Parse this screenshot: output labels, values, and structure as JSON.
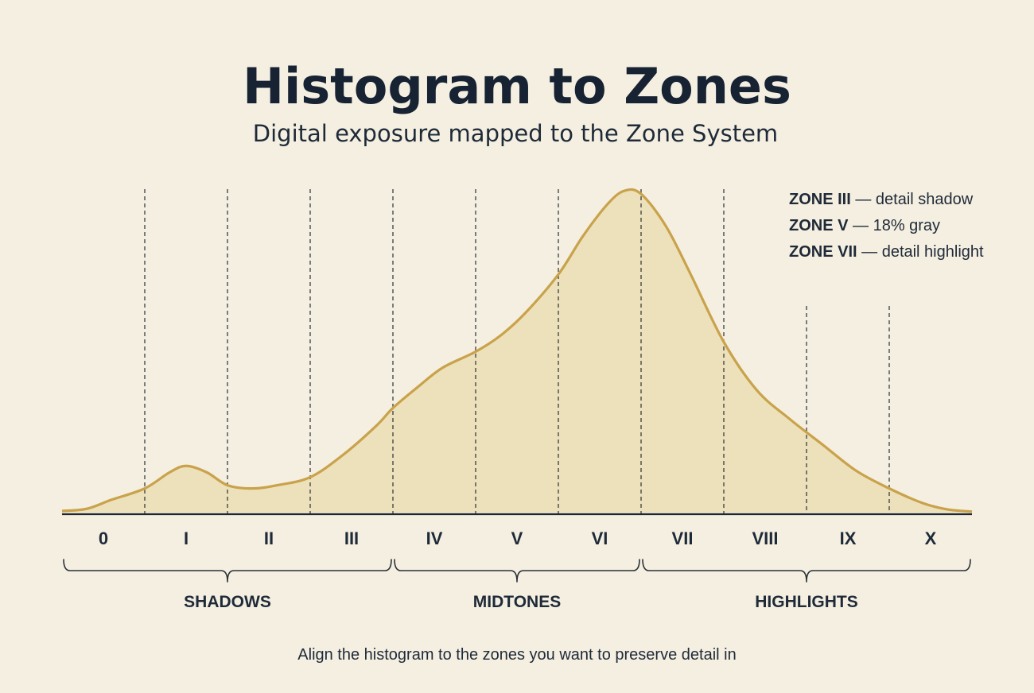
{
  "header": {
    "title": "Histogram to Zones",
    "subtitle": "Digital exposure mapped to the Zone System"
  },
  "legend": {
    "items": [
      {
        "zone": "ZONE III",
        "desc": " — detail shadow"
      },
      {
        "zone": "ZONE V",
        "desc": " — 18% gray"
      },
      {
        "zone": "ZONE VII",
        "desc": " — detail highlight"
      }
    ]
  },
  "caption": "Align the histogram to the zones you want to preserve detail in",
  "colors": {
    "curve_stroke": "#c9a24b",
    "curve_fill": "#ede1bb",
    "background": "#f4efe1"
  },
  "chart_data": {
    "type": "area",
    "title": "Histogram to Zones",
    "subtitle": "Digital exposure mapped to the Zone System",
    "xlabel": "",
    "ylabel": "",
    "grid": false,
    "zones": [
      "0",
      "I",
      "II",
      "III",
      "IV",
      "V",
      "VI",
      "VII",
      "VIII",
      "IX",
      "X"
    ],
    "groups": [
      {
        "label": "SHADOWS",
        "from_zone": 0,
        "to_zone": 3
      },
      {
        "label": "MIDTONES",
        "from_zone": 4,
        "to_zone": 6
      },
      {
        "label": "HIGHLIGHTS",
        "from_zone": 7,
        "to_zone": 10
      }
    ],
    "x_range": [
      0,
      11
    ],
    "y_range": [
      0,
      1
    ],
    "curve": {
      "x": [
        0,
        0.3,
        0.6,
        1.0,
        1.3,
        1.5,
        1.75,
        2.0,
        2.3,
        2.6,
        3.0,
        3.4,
        3.8,
        4.0,
        4.3,
        4.6,
        5.0,
        5.3,
        5.6,
        6.0,
        6.3,
        6.6,
        6.8,
        7.0,
        7.3,
        7.6,
        8.0,
        8.4,
        8.8,
        9.2,
        9.6,
        10.0,
        10.4,
        10.7,
        11.0
      ],
      "y": [
        0.005,
        0.012,
        0.04,
        0.075,
        0.125,
        0.145,
        0.125,
        0.085,
        0.075,
        0.085,
        0.11,
        0.18,
        0.27,
        0.325,
        0.39,
        0.45,
        0.5,
        0.55,
        0.62,
        0.74,
        0.86,
        0.96,
        1.0,
        0.99,
        0.89,
        0.74,
        0.53,
        0.38,
        0.29,
        0.21,
        0.13,
        0.075,
        0.03,
        0.01,
        0.003
      ]
    },
    "tall_dividers_at": [
      1,
      2,
      3,
      4,
      5,
      6,
      7,
      8
    ],
    "short_dividers_at": [
      9,
      10
    ]
  }
}
